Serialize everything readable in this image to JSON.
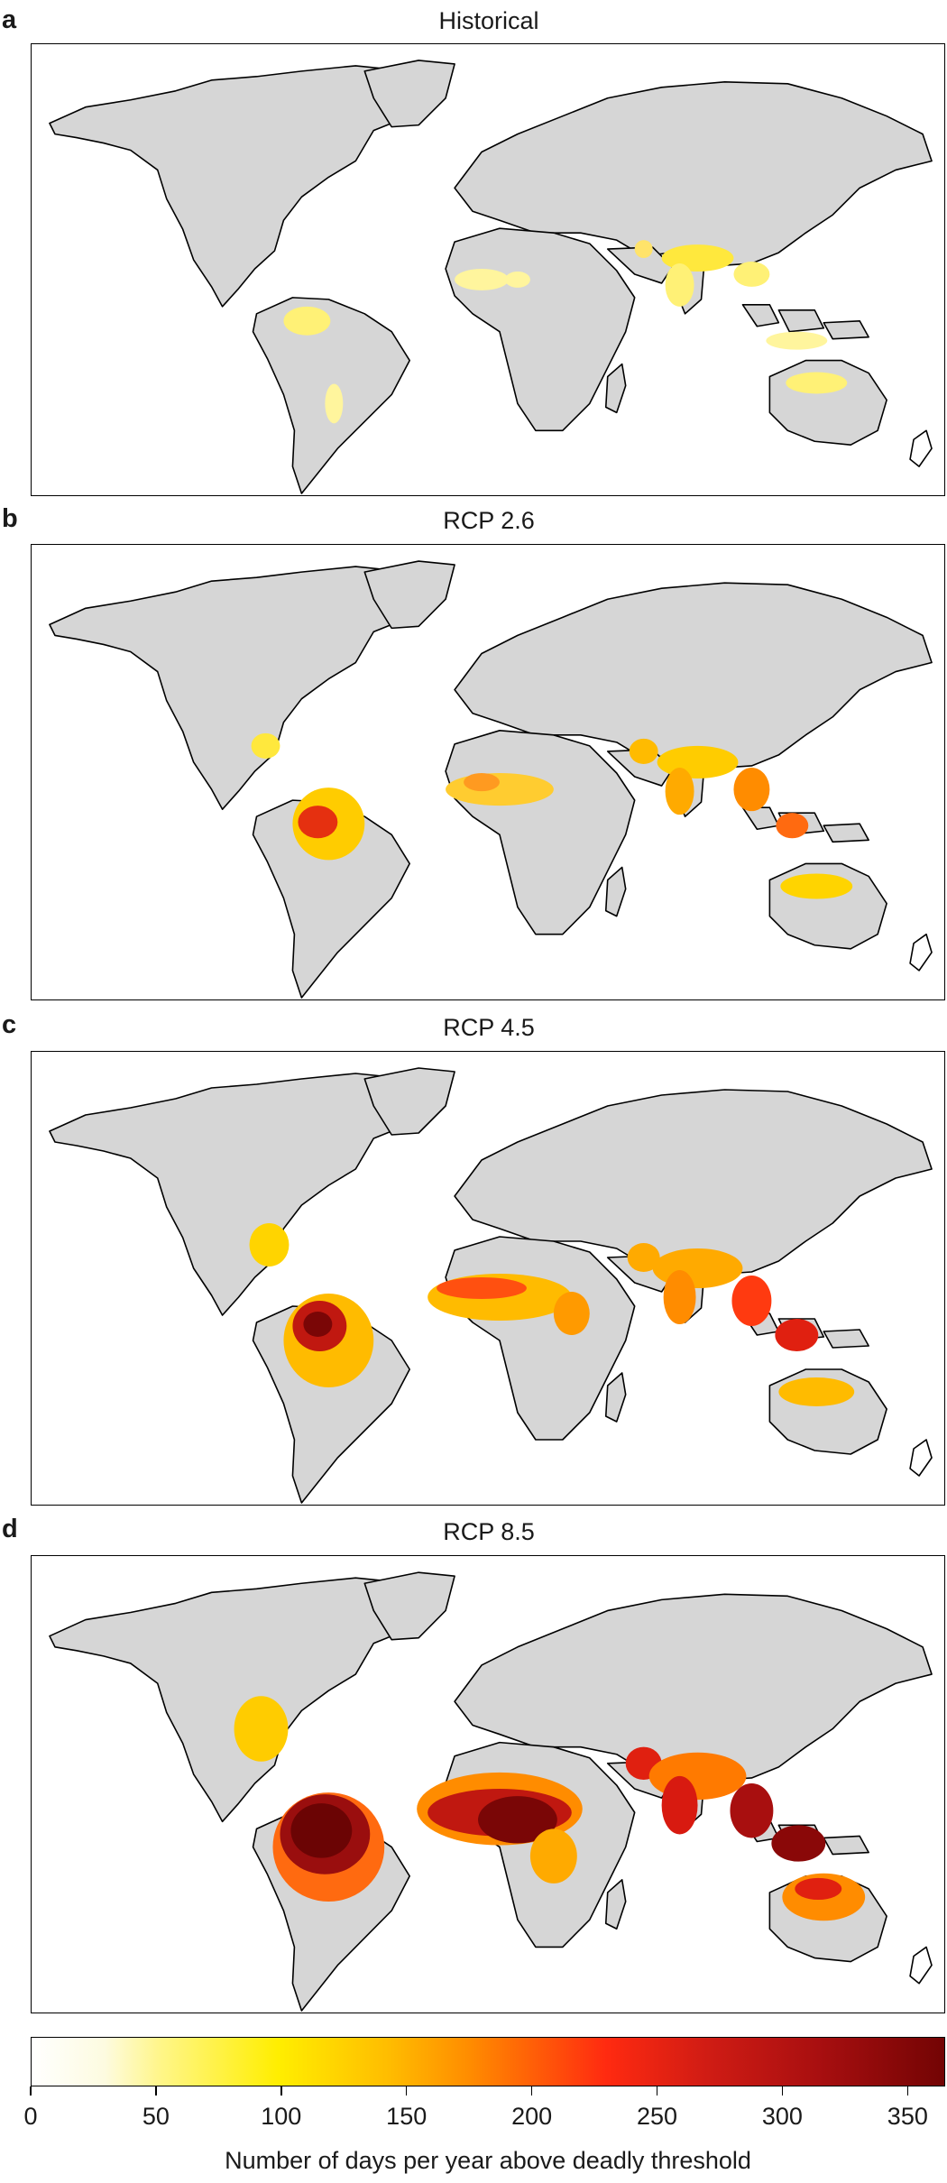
{
  "panels": [
    {
      "letter": "a",
      "title": "Historical"
    },
    {
      "letter": "b",
      "title": "RCP 2.6"
    },
    {
      "letter": "c",
      "title": "RCP 4.5"
    },
    {
      "letter": "d",
      "title": "RCP 8.5"
    }
  ],
  "colorbar": {
    "label": "Number of days per year above deadly threshold",
    "ticks": [
      "0",
      "50",
      "100",
      "150",
      "200",
      "250",
      "300",
      "350"
    ],
    "range": [
      0,
      365
    ],
    "colors": [
      "#ffffff",
      "#ffee00",
      "#ff8c00",
      "#ff2a10",
      "#a90f10",
      "#730404"
    ]
  },
  "map_colors": {
    "land": "#d6d6d6",
    "ocean": "#ffffff",
    "coast": "#000000"
  }
}
